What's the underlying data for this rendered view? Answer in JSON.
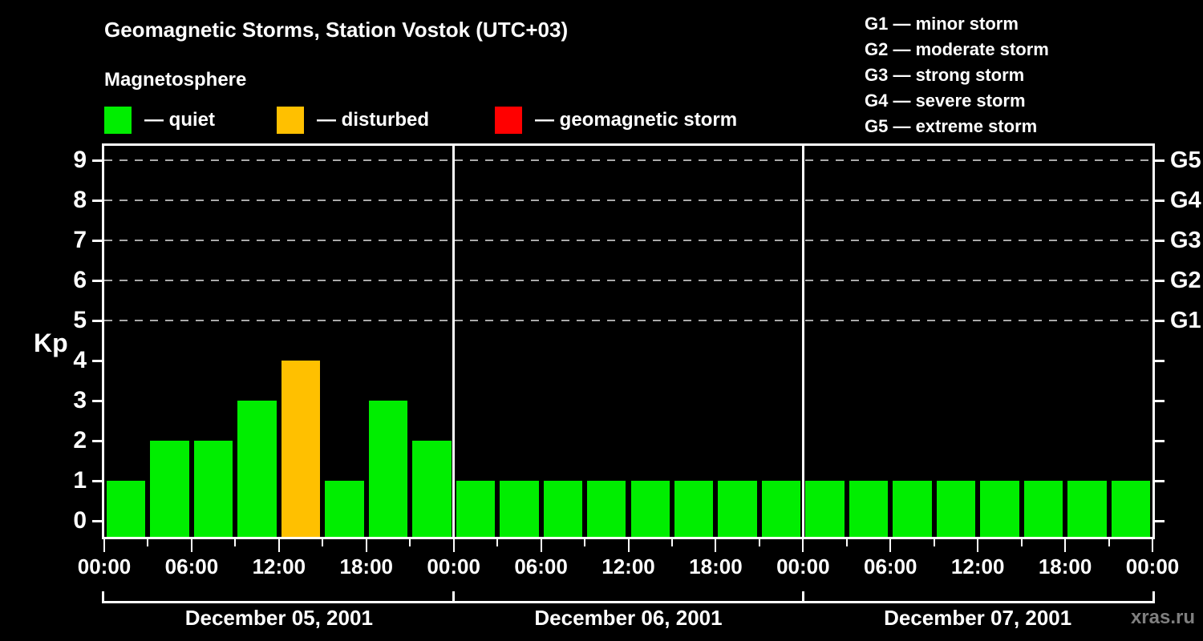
{
  "header": {
    "title": "Geomagnetic Storms, Station Vostok (UTC+03)",
    "subtitle": "Magnetosphere"
  },
  "status_legend": {
    "items": [
      {
        "key": "quiet",
        "label": "— quiet"
      },
      {
        "key": "disturbed",
        "label": "— disturbed"
      },
      {
        "key": "storm",
        "label": "— geomagnetic storm"
      }
    ]
  },
  "g_scale_legend": {
    "items": [
      "G1 — minor storm",
      "G2 — moderate storm",
      "G3 — strong storm",
      "G4 — severe storm",
      "G5 — extreme storm"
    ]
  },
  "colors": {
    "quiet": "#00ee00",
    "disturbed": "#ffc000",
    "storm": "#ff0000",
    "frame": "#ffffff",
    "grid": "#aaaaaa",
    "background": "#000000",
    "watermark": "#7f7f7f"
  },
  "watermark": "xras.ru",
  "chart_data": {
    "type": "bar",
    "title": "Geomagnetic Storms, Station Vostok (UTC+03)",
    "xlabel": "",
    "ylabel": "Kp",
    "ylim": [
      0,
      9
    ],
    "yticks": [
      0,
      1,
      2,
      3,
      4,
      5,
      6,
      7,
      8,
      9
    ],
    "grid_levels": [
      5,
      6,
      7,
      8,
      9
    ],
    "grid_style": "dashed",
    "legend_position": "top",
    "right_axis": [
      {
        "kp": 5,
        "label": "G1"
      },
      {
        "kp": 6,
        "label": "G2"
      },
      {
        "kp": 7,
        "label": "G3"
      },
      {
        "kp": 8,
        "label": "G4"
      },
      {
        "kp": 9,
        "label": "G5"
      }
    ],
    "bar_interval_hours": 3,
    "x_tick_labels": [
      "00:00",
      "06:00",
      "12:00",
      "18:00",
      "00:00",
      "06:00",
      "12:00",
      "18:00",
      "00:00",
      "06:00",
      "12:00",
      "18:00",
      "00:00"
    ],
    "color_rule": {
      "quiet_max_kp": 3,
      "disturbed_max_kp": 4
    },
    "days": [
      {
        "date": "December 05, 2001",
        "values": [
          1,
          2,
          2,
          3,
          4,
          1,
          3,
          2
        ]
      },
      {
        "date": "December 06, 2001",
        "values": [
          1,
          1,
          1,
          1,
          1,
          1,
          1,
          1
        ]
      },
      {
        "date": "December 07, 2001",
        "values": [
          1,
          1,
          1,
          1,
          1,
          1,
          1,
          1
        ]
      }
    ]
  }
}
